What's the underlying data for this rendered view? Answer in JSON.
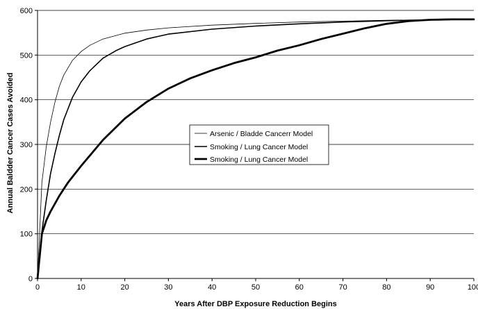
{
  "chart_data": {
    "type": "line",
    "xlabel": "Years After DBP Exposure Reduction Begins",
    "ylabel": "Annual Baldder Cancer Cases Avoided",
    "xlim": [
      0,
      100
    ],
    "ylim": [
      0,
      600
    ],
    "x_ticks": [
      0,
      10,
      20,
      30,
      40,
      50,
      60,
      70,
      80,
      90,
      100
    ],
    "y_ticks": [
      0,
      100,
      200,
      300,
      400,
      500,
      600
    ],
    "grid": "horizontal",
    "legend_position": "center",
    "series": [
      {
        "name": "Arsenic / Bladde Cancerr Model",
        "stroke": "thin",
        "color": "#000000",
        "x": [
          0,
          1,
          2,
          3,
          4,
          5,
          6,
          8,
          10,
          12,
          15,
          20,
          25,
          30,
          40,
          50,
          60,
          70,
          80,
          90,
          100
        ],
        "y": [
          0,
          215,
          295,
          350,
          395,
          430,
          455,
          488,
          508,
          522,
          536,
          549,
          556,
          561,
          567,
          571,
          574,
          576,
          578,
          579,
          580
        ]
      },
      {
        "name": "Smoking / Lung Cancer Model",
        "stroke": "medium",
        "color": "#000000",
        "x": [
          0,
          1,
          2,
          3,
          4,
          5,
          6,
          8,
          10,
          12,
          15,
          18,
          20,
          25,
          30,
          40,
          50,
          60,
          70,
          80,
          90,
          100
        ],
        "y": [
          0,
          105,
          175,
          235,
          280,
          320,
          355,
          405,
          440,
          465,
          493,
          510,
          519,
          536,
          547,
          558,
          565,
          570,
          574,
          577,
          579,
          580
        ]
      },
      {
        "name": "Smoking / Lung Cancer Model",
        "stroke": "thick",
        "color": "#000000",
        "x": [
          0,
          1,
          2,
          3,
          5,
          7,
          10,
          15,
          20,
          25,
          30,
          35,
          40,
          45,
          50,
          55,
          60,
          65,
          70,
          75,
          80,
          85,
          90,
          95,
          100
        ],
        "y": [
          0,
          100,
          130,
          150,
          185,
          215,
          252,
          310,
          358,
          395,
          425,
          448,
          466,
          482,
          495,
          510,
          522,
          536,
          548,
          560,
          570,
          576,
          579,
          580,
          580
        ]
      }
    ]
  }
}
